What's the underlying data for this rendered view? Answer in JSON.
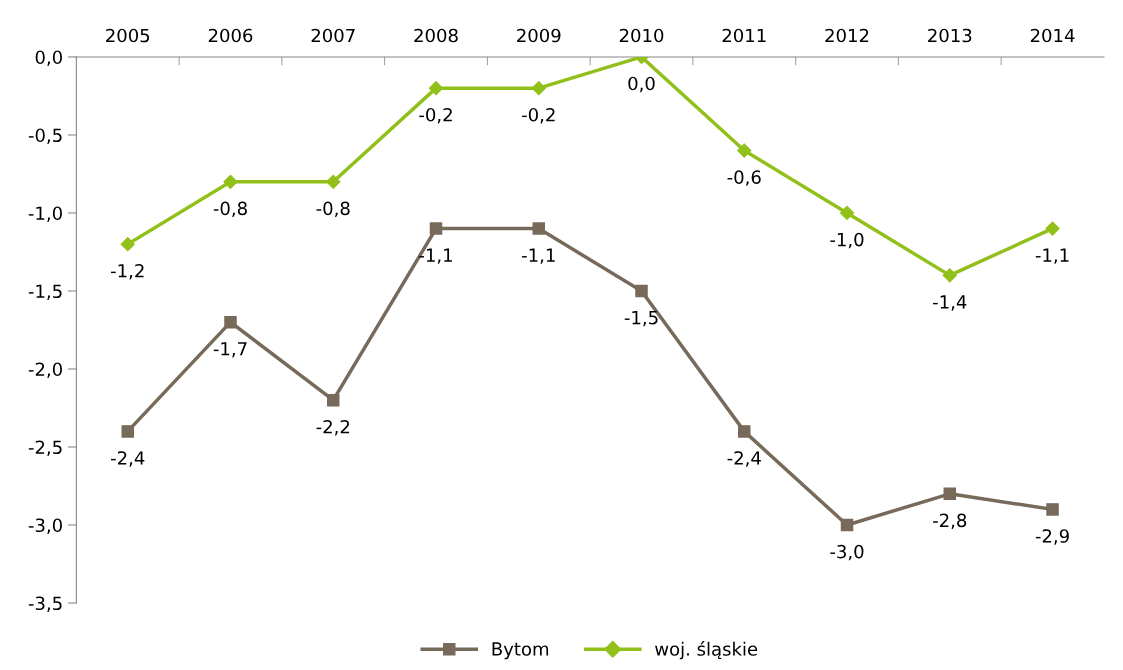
{
  "chart_data": {
    "type": "line",
    "categories": [
      "2005",
      "2006",
      "2007",
      "2008",
      "2009",
      "2010",
      "2011",
      "2012",
      "2013",
      "2014"
    ],
    "ylim": [
      -3.5,
      0
    ],
    "yticks": [
      {
        "value": -3.5,
        "label": "-3,5"
      },
      {
        "value": -3.0,
        "label": "-3,0"
      },
      {
        "value": -2.5,
        "label": "-2,5"
      },
      {
        "value": -2.0,
        "label": "-2,0"
      },
      {
        "value": -1.5,
        "label": "-1,5"
      },
      {
        "value": -1.0,
        "label": "-1,0"
      },
      {
        "value": -0.5,
        "label": "-0,5"
      },
      {
        "value": 0,
        "label": "0,0"
      }
    ],
    "grid": false,
    "legend": "bottom",
    "series": [
      {
        "name": "Bytom",
        "color": "#786a5a",
        "marker": "square",
        "values": [
          -2.4,
          -1.7,
          -2.2,
          -1.1,
          -1.1,
          -1.5,
          -2.4,
          -3.0,
          -2.8,
          -2.9
        ],
        "value_labels": [
          "-2,4",
          "-1,7",
          "-2,2",
          "-1,1",
          "-1,1",
          "-1,5",
          "-2,4",
          "-3,0",
          "-2,8",
          "-2,9"
        ]
      },
      {
        "name": "woj. śląskie",
        "color": "#92c01a",
        "marker": "diamond",
        "values": [
          -1.2,
          -0.8,
          -0.8,
          -0.2,
          -0.2,
          0.0,
          -0.6,
          -1.0,
          -1.4,
          -1.1
        ],
        "value_labels": [
          "-1,2",
          "-0,8",
          "-0,8",
          "-0,2",
          "-0,2",
          "0,0",
          "-0,6",
          "-1,0",
          "-1,4",
          "-1,1"
        ]
      }
    ]
  }
}
